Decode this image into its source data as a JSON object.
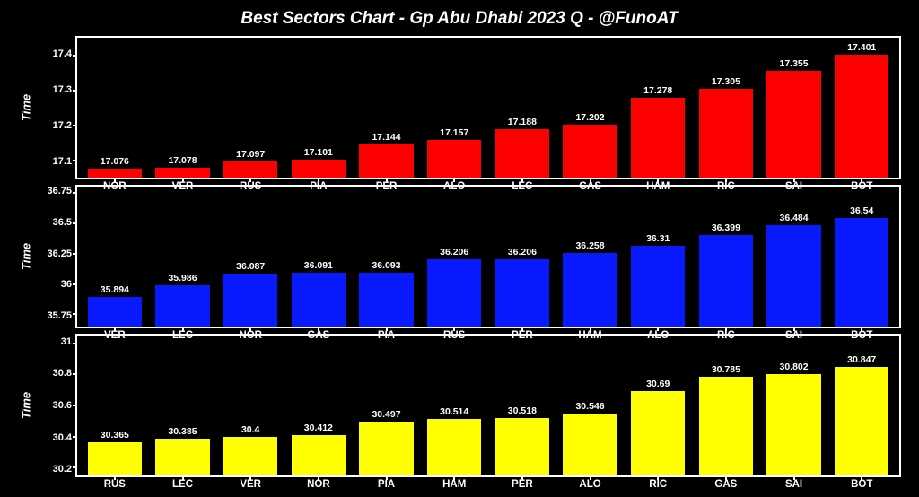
{
  "title": "Best Sectors Chart - Gp Abu Dhabi 2023 Q - @FunoAT",
  "background_color": "#000000",
  "text_color": "#ffffff",
  "title_fontsize": 19,
  "axis_fontsize": 11,
  "panels": [
    {
      "ylabel": "Time",
      "color": "#ff0000",
      "ymin": 17.05,
      "ymax": 17.45,
      "yticks": [
        17.1,
        17.2,
        17.3,
        17.4
      ],
      "bars": [
        {
          "label": "NOR",
          "value": 17.076
        },
        {
          "label": "VER",
          "value": 17.078
        },
        {
          "label": "RUS",
          "value": 17.097
        },
        {
          "label": "PIA",
          "value": 17.101
        },
        {
          "label": "PER",
          "value": 17.144
        },
        {
          "label": "ALO",
          "value": 17.157
        },
        {
          "label": "LEC",
          "value": 17.188
        },
        {
          "label": "GAS",
          "value": 17.202
        },
        {
          "label": "HAM",
          "value": 17.278
        },
        {
          "label": "RIC",
          "value": 17.305
        },
        {
          "label": "SAI",
          "value": 17.355
        },
        {
          "label": "BOT",
          "value": 17.401
        }
      ]
    },
    {
      "ylabel": "Time",
      "color": "#0a1aff",
      "ymin": 35.65,
      "ymax": 36.8,
      "yticks": [
        35.75,
        36.0,
        36.25,
        36.5,
        36.75
      ],
      "bars": [
        {
          "label": "VER",
          "value": 35.894
        },
        {
          "label": "LEC",
          "value": 35.986
        },
        {
          "label": "NOR",
          "value": 36.087
        },
        {
          "label": "GAS",
          "value": 36.091
        },
        {
          "label": "PIA",
          "value": 36.093
        },
        {
          "label": "RUS",
          "value": 36.206
        },
        {
          "label": "PER",
          "value": 36.206
        },
        {
          "label": "HAM",
          "value": 36.258
        },
        {
          "label": "ALO",
          "value": 36.31
        },
        {
          "label": "RIC",
          "value": 36.399
        },
        {
          "label": "SAI",
          "value": 36.484
        },
        {
          "label": "BOT",
          "value": 36.54
        }
      ]
    },
    {
      "ylabel": "Time",
      "color": "#ffff00",
      "ymin": 30.15,
      "ymax": 31.05,
      "yticks": [
        30.2,
        30.4,
        30.6,
        30.8,
        31.0
      ],
      "bars": [
        {
          "label": "RUS",
          "value": 30.365
        },
        {
          "label": "LEC",
          "value": 30.385
        },
        {
          "label": "VER",
          "value": 30.4
        },
        {
          "label": "NOR",
          "value": 30.412
        },
        {
          "label": "PIA",
          "value": 30.497
        },
        {
          "label": "HAM",
          "value": 30.514
        },
        {
          "label": "PER",
          "value": 30.518
        },
        {
          "label": "ALO",
          "value": 30.546
        },
        {
          "label": "RIC",
          "value": 30.69
        },
        {
          "label": "GAS",
          "value": 30.785
        },
        {
          "label": "SAI",
          "value": 30.802
        },
        {
          "label": "BOT",
          "value": 30.847
        }
      ]
    }
  ]
}
